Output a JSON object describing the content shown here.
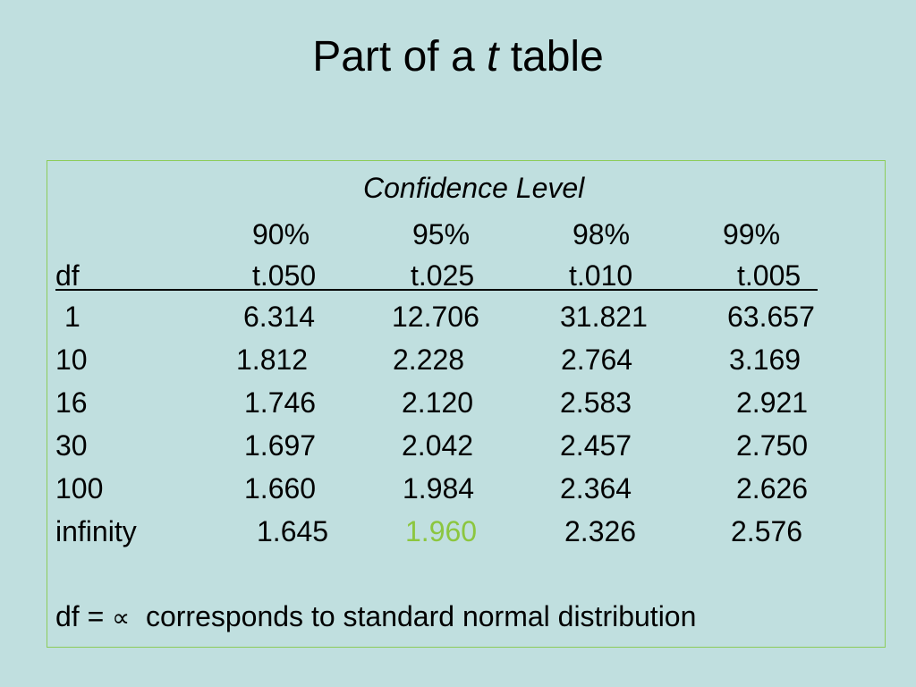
{
  "title": {
    "prefix": "Part of a",
    "italic_letter": "t",
    "suffix": "table"
  },
  "table": {
    "super_header": "Confidence Level",
    "confidence_levels": [
      "90%",
      "95%",
      "98%",
      "99%"
    ],
    "df_label": "df",
    "t_labels": [
      "t.050",
      "t.025",
      "t.010",
      "t.005"
    ],
    "rows": [
      {
        "df": "1",
        "values": [
          "6.314",
          "12.706",
          "31.821",
          "63.657"
        ]
      },
      {
        "df": "10",
        "values": [
          "1.812",
          "2.228",
          "2.764",
          "3.169"
        ]
      },
      {
        "df": "16",
        "values": [
          "1.746",
          "2.120",
          "2.583",
          "2.921"
        ]
      },
      {
        "df": "30",
        "values": [
          "1.697",
          "2.042",
          "2.457",
          "2.750"
        ]
      },
      {
        "df": "100",
        "values": [
          "1.660",
          "1.984",
          "2.364",
          "2.626"
        ]
      },
      {
        "df": "infinity",
        "values": [
          "1.645",
          "1.960",
          "2.326",
          "2.576"
        ]
      }
    ],
    "highlight_color": "#8cc63f",
    "border_color": "#8ccc5a"
  },
  "footnote": {
    "prefix": "df =",
    "symbol": "∝",
    "text": "corresponds to standard normal distribution"
  },
  "background_color": "#c0dfdf"
}
